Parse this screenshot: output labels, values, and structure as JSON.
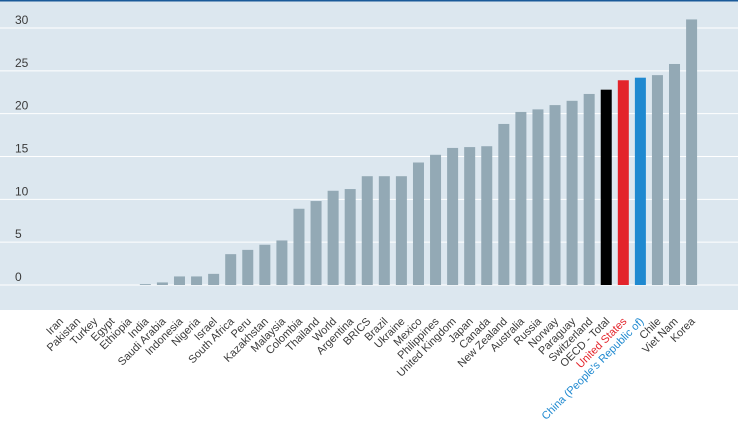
{
  "chart_data": {
    "type": "bar",
    "title": "",
    "xlabel": "",
    "ylabel": "",
    "ylim": [
      -3,
      32
    ],
    "yticks": [
      0,
      5,
      10,
      15,
      20,
      25,
      30
    ],
    "grid": true,
    "categories": [
      "Iran",
      "Pakistan",
      "Turkey",
      "Egypt",
      "Ethiopia",
      "India",
      "Saudi Arabia",
      "Indonesia",
      "Nigeria",
      "Israel",
      "South Africa",
      "Peru",
      "Kazakhstan",
      "Malaysia",
      "Colombia",
      "Thailand",
      "World",
      "Argentina",
      "BRICS",
      "Brazil",
      "Ukraine",
      "Mexico",
      "Philippines",
      "United Kingdom",
      "Japan",
      "Canada",
      "New Zealand",
      "Australia",
      "Russia",
      "Norway",
      "Paraguay",
      "Switzerland",
      "OECD - Total",
      "United States",
      "China (People's Republic of)",
      "Chile",
      "Viet Nam",
      "Korea"
    ],
    "values": [
      0,
      0,
      0,
      0,
      0,
      0.1,
      0.3,
      1.0,
      1.0,
      1.3,
      3.6,
      4.1,
      4.7,
      5.2,
      8.9,
      9.8,
      11.0,
      11.2,
      12.7,
      12.7,
      12.7,
      14.3,
      15.2,
      16.0,
      16.1,
      16.2,
      18.8,
      20.2,
      20.5,
      21.0,
      21.5,
      22.3,
      22.8,
      23.9,
      24.2,
      24.5,
      25.8,
      31.0
    ],
    "bar_colors": {
      "default": "#93a9b5",
      "OECD - Total": "#000000",
      "United States": "#e3242b",
      "China (People's Republic of)": "#1f89d0"
    },
    "label_colors": {
      "default": "#3a3a3a",
      "United States": "#e3242b",
      "China (People's Republic of)": "#1f89d0"
    },
    "plot_background": "#dce7ef",
    "grid_color": "#ffffff",
    "frame_line_color": "#1a5a99"
  }
}
